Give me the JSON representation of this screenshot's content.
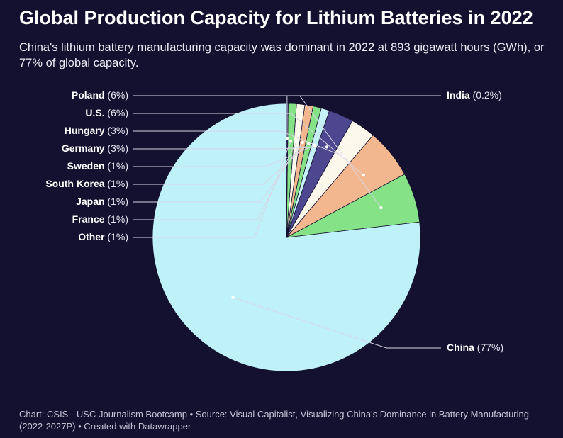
{
  "title": "Global Production Capacity for Lithium Batteries in 2022",
  "subtitle": "China's lithium battery manufacturing capacity was dominant in 2022 at 893 gigawatt hours (GWh), or 77% of global capacity.",
  "footer": "Chart: CSIS - USC Journalism Bootcamp • Source: Visual Capitalist, Visualizing China's Dominance in Battery Manufacturing (2022-2027P) • Created with Datawrapper",
  "chart_data": {
    "type": "pie",
    "start": "12 o'clock",
    "direction": "counterclockwise",
    "slices": [
      {
        "name": "China",
        "label": "(77%)",
        "value": 77,
        "color": "#bff2f8"
      },
      {
        "name": "Poland",
        "label": "(6%)",
        "value": 6,
        "color": "#86e286"
      },
      {
        "name": "U.S.",
        "label": "(6%)",
        "value": 6,
        "color": "#f2b78e"
      },
      {
        "name": "Hungary",
        "label": "(3%)",
        "value": 3,
        "color": "#fdf8ec"
      },
      {
        "name": "Germany",
        "label": "(3%)",
        "value": 3,
        "color": "#4d478f"
      },
      {
        "name": "Sweden",
        "label": "(1%)",
        "value": 1,
        "color": "#c6f1f7"
      },
      {
        "name": "South Korea",
        "label": "(1%)",
        "value": 1,
        "color": "#86e286"
      },
      {
        "name": "Japan",
        "label": "(1%)",
        "value": 1,
        "color": "#f2b78e"
      },
      {
        "name": "France",
        "label": "(1%)",
        "value": 1,
        "color": "#fdf8ec"
      },
      {
        "name": "Other",
        "label": "(1%)",
        "value": 1,
        "color": "#86e286"
      },
      {
        "name": "India",
        "label": "(0.2%)",
        "value": 0.2,
        "color": "#4d478f"
      }
    ]
  }
}
